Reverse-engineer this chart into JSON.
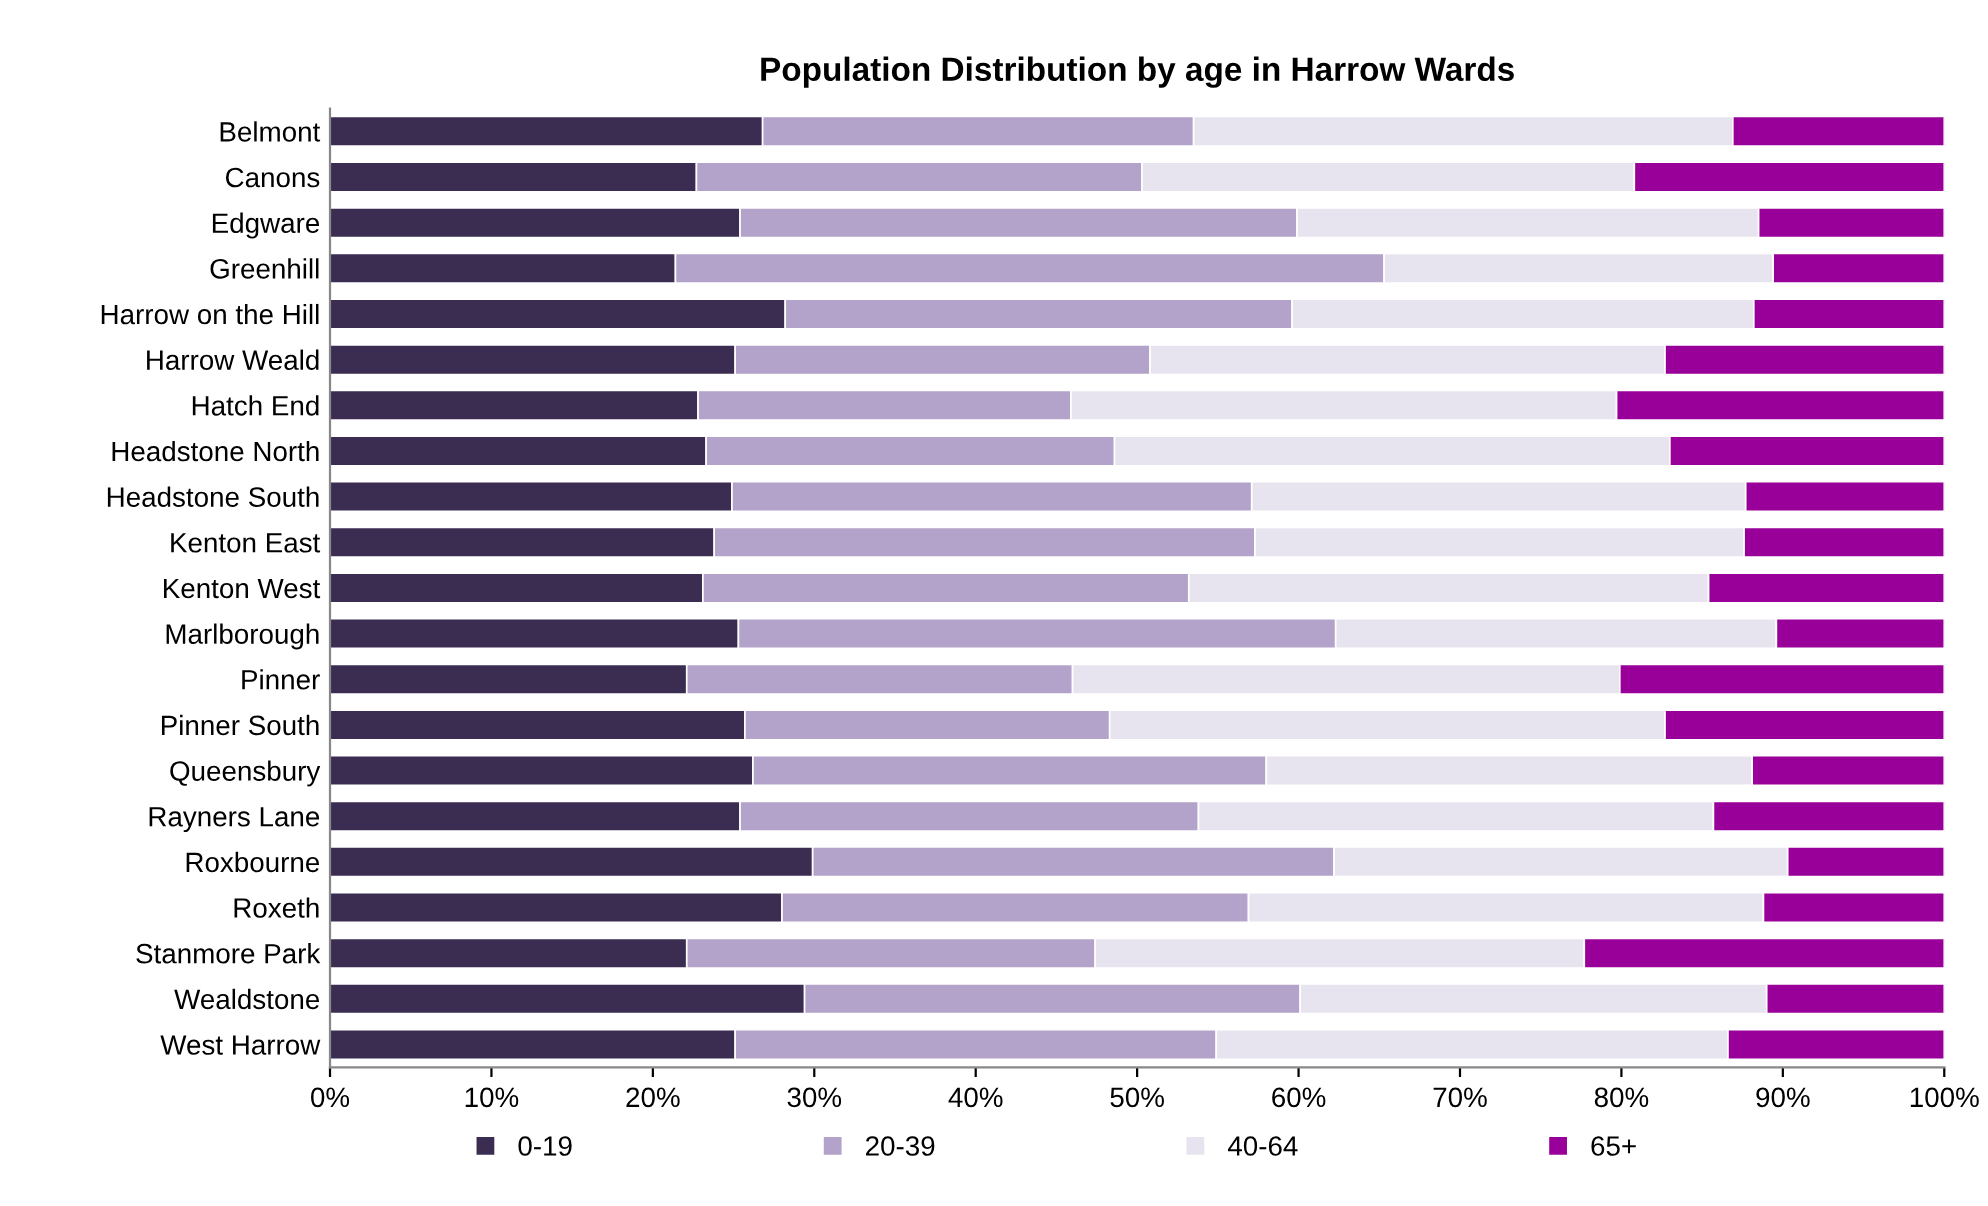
{
  "chart_data": {
    "type": "bar",
    "orientation": "horizontal",
    "stacked": true,
    "title": "Population Distribution by age in Harrow Wards",
    "categories": [
      "Belmont",
      "Canons",
      "Edgware",
      "Greenhill",
      "Harrow on the Hill",
      "Harrow Weald",
      "Hatch End",
      "Headstone North",
      "Headstone South",
      "Kenton East",
      "Kenton West",
      "Marlborough",
      "Pinner",
      "Pinner South",
      "Queensbury",
      "Rayners Lane",
      "Roxbourne",
      "Roxeth",
      "Stanmore Park",
      "Wealdstone",
      "West Harrow"
    ],
    "series": [
      {
        "name": "0-19",
        "color": "#3b2d52",
        "values": [
          26.8,
          22.7,
          25.4,
          21.4,
          28.2,
          25.1,
          22.8,
          23.3,
          24.9,
          23.8,
          23.1,
          25.3,
          22.1,
          25.7,
          26.2,
          25.4,
          29.9,
          28.0,
          22.1,
          29.4,
          25.1
        ]
      },
      {
        "name": "20-39",
        "color": "#b3a2c9",
        "values": [
          26.7,
          27.6,
          34.5,
          43.9,
          31.4,
          25.7,
          23.1,
          25.3,
          32.2,
          33.5,
          30.1,
          37.0,
          23.9,
          22.6,
          31.8,
          28.4,
          32.3,
          28.9,
          25.3,
          30.7,
          29.8
        ]
      },
      {
        "name": "40-64",
        "color": "#e8e4ef",
        "values": [
          33.4,
          30.5,
          28.6,
          24.1,
          28.6,
          31.9,
          33.8,
          34.4,
          30.6,
          30.3,
          32.2,
          27.3,
          33.9,
          34.4,
          30.1,
          31.9,
          28.1,
          31.9,
          30.3,
          28.9,
          31.7
        ]
      },
      {
        "name": "65+",
        "color": "#990099",
        "values": [
          13.1,
          19.2,
          11.5,
          10.6,
          11.8,
          17.3,
          20.3,
          17.0,
          12.3,
          12.4,
          14.6,
          10.4,
          20.1,
          17.3,
          11.9,
          14.3,
          9.7,
          11.2,
          22.3,
          11.0,
          13.4
        ]
      }
    ],
    "xlim": [
      0,
      100
    ],
    "xticks": [
      {
        "value": 0,
        "label": "0%"
      },
      {
        "value": 10,
        "label": "10%"
      },
      {
        "value": 20,
        "label": "20%"
      },
      {
        "value": 30,
        "label": "30%"
      },
      {
        "value": 40,
        "label": "40%"
      },
      {
        "value": 50,
        "label": "50%"
      },
      {
        "value": 60,
        "label": "60%"
      },
      {
        "value": 70,
        "label": "70%"
      },
      {
        "value": 80,
        "label": "80%"
      },
      {
        "value": 90,
        "label": "90%"
      },
      {
        "value": 100,
        "label": "100%"
      }
    ],
    "legend": "bottom",
    "grid": false
  }
}
